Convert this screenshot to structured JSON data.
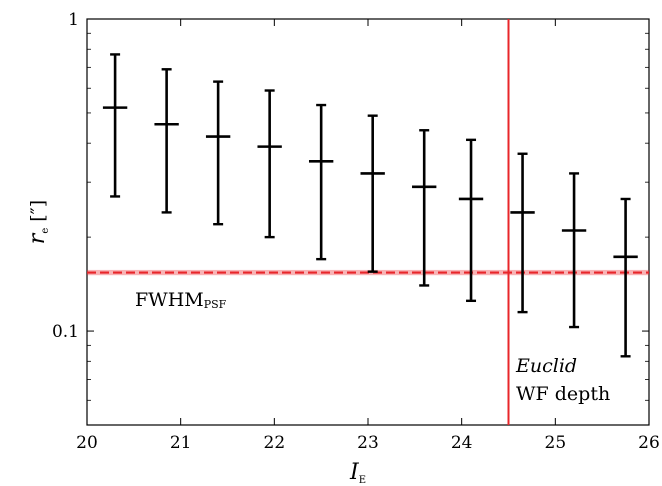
{
  "chart_data": {
    "type": "scatter",
    "title": "",
    "xlabel": "I",
    "xlabel_sub": "E",
    "ylabel": "r",
    "ylabel_sub": "e",
    "ylabel_unit": "[″]",
    "xlim": [
      20,
      26
    ],
    "ylim": [
      0.05,
      1
    ],
    "yscale": "log",
    "x_ticks": [
      "20",
      "21",
      "22",
      "23",
      "24",
      "25",
      "26"
    ],
    "y_ticks": [
      "1",
      "0.1"
    ],
    "grid": false,
    "series": [
      {
        "points": [
          {
            "x": 20.3,
            "y": 0.52,
            "xerr": 0.13,
            "ylo": 0.27,
            "yhi": 0.77
          },
          {
            "x": 20.85,
            "y": 0.46,
            "xerr": 0.13,
            "ylo": 0.24,
            "yhi": 0.69
          },
          {
            "x": 21.4,
            "y": 0.42,
            "xerr": 0.13,
            "ylo": 0.22,
            "yhi": 0.63
          },
          {
            "x": 21.95,
            "y": 0.39,
            "xerr": 0.13,
            "ylo": 0.2,
            "yhi": 0.59
          },
          {
            "x": 22.5,
            "y": 0.35,
            "xerr": 0.13,
            "ylo": 0.17,
            "yhi": 0.53
          },
          {
            "x": 23.05,
            "y": 0.32,
            "xerr": 0.13,
            "ylo": 0.155,
            "yhi": 0.49
          },
          {
            "x": 23.6,
            "y": 0.29,
            "xerr": 0.13,
            "ylo": 0.14,
            "yhi": 0.44
          },
          {
            "x": 24.1,
            "y": 0.265,
            "xerr": 0.13,
            "ylo": 0.125,
            "yhi": 0.41
          },
          {
            "x": 24.65,
            "y": 0.24,
            "xerr": 0.13,
            "ylo": 0.115,
            "yhi": 0.37
          },
          {
            "x": 25.2,
            "y": 0.21,
            "xerr": 0.13,
            "ylo": 0.103,
            "yhi": 0.32
          },
          {
            "x": 25.75,
            "y": 0.173,
            "xerr": 0.13,
            "ylo": 0.083,
            "yhi": 0.265
          }
        ],
        "color": "#000000"
      }
    ],
    "hline": {
      "y": 0.154,
      "band": [
        0.151,
        0.157
      ],
      "label": "FWHM",
      "label_sub": "PSF",
      "color": "#e8262a"
    },
    "vline": {
      "x": 24.5,
      "color": "#e8262a",
      "label_italic": "Euclid",
      "label": "WF depth"
    }
  }
}
